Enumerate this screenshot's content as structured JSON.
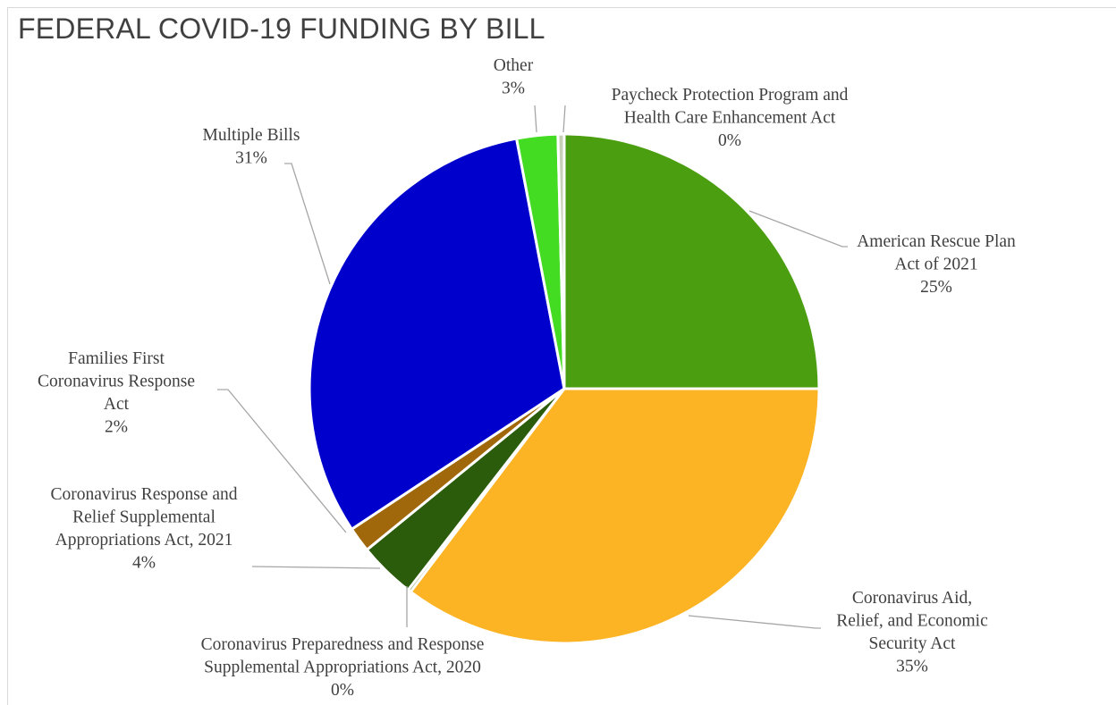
{
  "chart_data": {
    "type": "pie",
    "title": "FEDERAL COVID-19 FUNDING BY BILL",
    "legend": "none",
    "slices": [
      {
        "label": "American Rescue Plan Act of 2021",
        "percent_label": "25%",
        "value": 25.0,
        "color": "#4a9e10"
      },
      {
        "label": "Coronavirus Aid, Relief, and Economic Security Act",
        "percent_label": "35%",
        "value": 35.3,
        "color": "#fcb424"
      },
      {
        "label": "Coronavirus Preparedness and Response Supplemental Appropriations Act, 2020",
        "percent_label": "0%",
        "value": 0.2,
        "color": "#6f8e3a"
      },
      {
        "label": "Coronavirus Response and Relief Supplemental Appropriations Act, 2021",
        "percent_label": "4%",
        "value": 3.6,
        "color": "#2a5c0c"
      },
      {
        "label": "Families First Coronavirus Response Act",
        "percent_label": "2%",
        "value": 1.6,
        "color": "#a0680a"
      },
      {
        "label": "Multiple Bills",
        "percent_label": "31%",
        "value": 31.3,
        "color": "#0000cc"
      },
      {
        "label": "Other",
        "percent_label": "3%",
        "value": 2.6,
        "color": "#44dc22"
      },
      {
        "label": "Paycheck Protection Program and Health Care Enhancement Act",
        "percent_label": "0%",
        "value": 0.4,
        "color": "#c8d0b8"
      }
    ]
  }
}
